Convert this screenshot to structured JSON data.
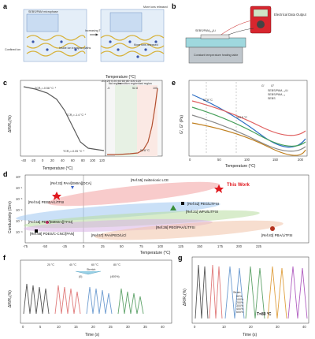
{
  "panel_a": {
    "label": "a",
    "box_labels": {
      "ionic_liquid": "SEBS/PAM",
      "microphase": "microphase",
      "ion_label": "Li",
      "confined_ion": "Confined ion",
      "inside_pathways": "Inside ion transport paths",
      "more_ion_released": "More ions released",
      "increasing_t": "Increasing T"
    }
  },
  "panel_b": {
    "label": "b",
    "sample_label": "SEBS/PAM",
    "subscript": "0.4",
    "ion": "Li",
    "right_label": "Electrical Data Output",
    "heater_label": "Constant temperature heating table"
  },
  "panel_c": {
    "label": "c",
    "top_xlabel": "Temperature (°C)",
    "xlabel": "Temperature (°C)",
    "ylabel": "ΔR/R₀(%)",
    "tcr_labels": [
      "TCR₁=-0.58 °C⁻¹",
      "TCR₂=-1.4 °C⁻¹",
      "TCR₃=-0.05 °C⁻¹"
    ],
    "region_labels": [
      "flat region",
      "transition region",
      "fast region"
    ],
    "region_marks": [
      "-5",
      "52.8",
      "105"
    ],
    "annot_left": "52.8 °C",
    "annot_right": "105"
  },
  "panel_d": {
    "label": "d",
    "xlabel": "Temperature (°C)",
    "ylabel": "Conductivity (S/m)",
    "this_work": "This Work",
    "refs": [
      "[Ref.32] PAA/[EMIm][DCA]",
      "[Ref.55] zwitterionic LCE",
      "[Ref.54] PEEEA/LiTFSI",
      "[Ref.52] PEG/LiTFSI",
      "[Ref.21] WPU/LiTFSI",
      "[Ref.56] PEA/[BMMIm][TFSI]",
      "[Ref.58] PDES/C-CNC/[PAN]",
      "[Ref.57] PAA/PEO/LiCl",
      "[Ref.26] PEG/PAA/LiTFSI",
      "[Ref.83] PBA/LiTFSI"
    ]
  },
  "panel_e": {
    "label": "e",
    "xlabel": "Temperature (°C)",
    "ylabel": "G′, G″ (Pa)",
    "legend": [
      "G′",
      "G″",
      "SEBS/PAM₀.₄/Li",
      "SEBS/PAM₀.₄",
      "SEBS"
    ],
    "annot1": "52.8 °C",
    "annot2": "103.5 °C"
  },
  "panel_f": {
    "label": "f",
    "xlabel": "Time (s)",
    "ylabel": "ΔR/R₀(%)",
    "legend": [
      "20 °C",
      "40 °C",
      "60 °C",
      "80 °C"
    ],
    "stretch": "Stretch",
    "strain_a": "(0)",
    "strain_b": "(400%)"
  },
  "panel_g": {
    "label": "g",
    "xlabel": "Time (s)",
    "ylabel": "ΔR/R₀(%)",
    "strain_title": "Strain:",
    "strains": [
      "50%",
      "100%",
      "200%",
      "300%",
      "400%",
      "600%"
    ],
    "temp": "T=80 °C"
  },
  "chart_data": [
    {
      "type": "line",
      "panel": "c",
      "xlabel": "Temperature (°C)",
      "ylabel": "ΔR/R₀(%)",
      "xlim": [
        -40,
        120
      ],
      "ylim": [
        -100,
        0
      ],
      "series": [
        {
          "x": [
            -40,
            -20,
            0,
            20,
            40,
            60,
            80,
            100,
            120
          ],
          "y": [
            -2,
            -10,
            -20,
            -45,
            -75,
            -92,
            -96,
            -97,
            -98
          ]
        }
      ]
    },
    {
      "type": "scatter",
      "panel": "d",
      "xlabel": "Temperature (°C)",
      "ylabel": "Conductivity (S/m)",
      "xlim": [
        -75,
        225
      ],
      "ylim": [
        1e-07,
        10
      ]
    }
  ],
  "colors": {
    "accent_red": "#e0191f",
    "blue": "#3a62c9",
    "grey": "#888888",
    "green": "#7bbf6a",
    "orange": "#e88b2a"
  }
}
